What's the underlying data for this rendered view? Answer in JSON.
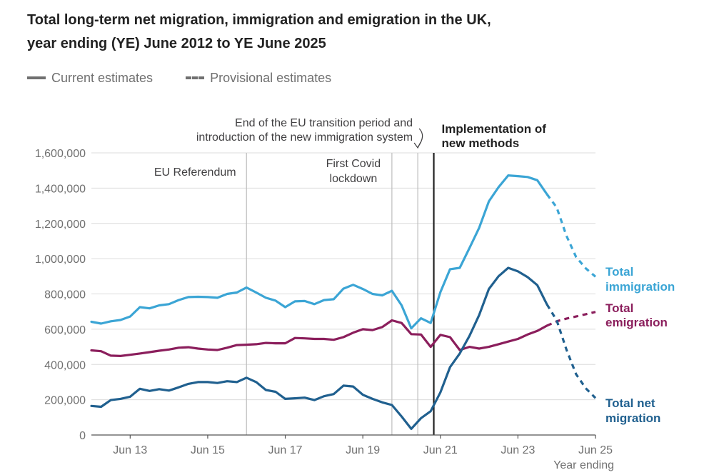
{
  "title": {
    "line1": "Total long-term net migration, immigration and emigration in the UK,",
    "line2": "year ending (YE) June 2012 to YE June 2025"
  },
  "legend": {
    "current": "Current estimates",
    "provisional": "Provisional estimates"
  },
  "colors": {
    "immigration": "#3BA5D5",
    "emigration": "#8B1E5C",
    "net": "#20608F",
    "grid": "#DCDCDC",
    "event_line": "#BDBDBD",
    "method_line": "#222222",
    "axis_text": "#707070"
  },
  "chart_data": {
    "type": "line",
    "title": "Total long-term net migration, immigration and emigration in the UK, year ending (YE) June 2012 to YE June 2025",
    "xlabel": "Year ending",
    "ylabel": "",
    "xlim": [
      2012.5,
      2025.5
    ],
    "ylim": [
      0,
      1600000
    ],
    "y_ticks": [
      0,
      200000,
      400000,
      600000,
      800000,
      1000000,
      1200000,
      1400000,
      1600000
    ],
    "y_tick_labels": [
      "0",
      "200,000",
      "400,000",
      "600,000",
      "800,000",
      "1,000,000",
      "1,200,000",
      "1,400,000",
      "1,600,000"
    ],
    "x_ticks": [
      2013.5,
      2015.5,
      2017.5,
      2019.5,
      2021.5,
      2023.5,
      2025.5
    ],
    "x_tick_labels": [
      "Jun 13",
      "Jun 15",
      "Jun 17",
      "Jun 19",
      "Jun 21",
      "Jun 23",
      "Jun 25"
    ],
    "grid": true,
    "provisional_from": 2024.25,
    "series": [
      {
        "name": "Total immigration",
        "label_lines": [
          "Total",
          "immigration"
        ],
        "color_key": "immigration",
        "x": [
          2012.5,
          2012.75,
          2013.0,
          2013.25,
          2013.5,
          2013.75,
          2014.0,
          2014.25,
          2014.5,
          2014.75,
          2015.0,
          2015.25,
          2015.5,
          2015.75,
          2016.0,
          2016.25,
          2016.5,
          2016.75,
          2017.0,
          2017.25,
          2017.5,
          2017.75,
          2018.0,
          2018.25,
          2018.5,
          2018.75,
          2019.0,
          2019.25,
          2019.5,
          2019.75,
          2020.0,
          2020.25,
          2020.5,
          2020.75,
          2021.0,
          2021.25,
          2021.5,
          2021.75,
          2022.0,
          2022.25,
          2022.5,
          2022.75,
          2023.0,
          2023.25,
          2023.5,
          2023.75,
          2024.0,
          2024.25,
          2024.5,
          2024.75,
          2025.0,
          2025.25,
          2025.5
        ],
        "values": [
          642000,
          632000,
          645000,
          652000,
          672000,
          725000,
          718000,
          735000,
          742000,
          765000,
          782000,
          784000,
          782000,
          778000,
          800000,
          808000,
          836000,
          808000,
          778000,
          762000,
          725000,
          758000,
          760000,
          742000,
          765000,
          770000,
          830000,
          852000,
          828000,
          800000,
          792000,
          818000,
          735000,
          605000,
          662000,
          635000,
          810000,
          940000,
          948000,
          1060000,
          1175000,
          1325000,
          1405000,
          1472000,
          1468000,
          1463000,
          1445000,
          1365000,
          1290000,
          1130000,
          1010000,
          945000,
          898000
        ]
      },
      {
        "name": "Total emigration",
        "label_lines": [
          "Total",
          "emigration"
        ],
        "color_key": "emigration",
        "x": [
          2012.5,
          2012.75,
          2013.0,
          2013.25,
          2013.5,
          2013.75,
          2014.0,
          2014.25,
          2014.5,
          2014.75,
          2015.0,
          2015.25,
          2015.5,
          2015.75,
          2016.0,
          2016.25,
          2016.5,
          2016.75,
          2017.0,
          2017.25,
          2017.5,
          2017.75,
          2018.0,
          2018.25,
          2018.5,
          2018.75,
          2019.0,
          2019.25,
          2019.5,
          2019.75,
          2020.0,
          2020.25,
          2020.5,
          2020.75,
          2021.0,
          2021.25,
          2021.5,
          2021.75,
          2022.0,
          2022.25,
          2022.5,
          2022.75,
          2023.0,
          2023.25,
          2023.5,
          2023.75,
          2024.0,
          2024.25,
          2024.5,
          2024.75,
          2025.0,
          2025.25,
          2025.5
        ],
        "values": [
          480000,
          475000,
          450000,
          448000,
          455000,
          462000,
          470000,
          478000,
          485000,
          495000,
          498000,
          490000,
          485000,
          482000,
          495000,
          510000,
          512000,
          515000,
          522000,
          520000,
          520000,
          550000,
          548000,
          545000,
          545000,
          540000,
          555000,
          580000,
          600000,
          595000,
          612000,
          650000,
          635000,
          572000,
          570000,
          500000,
          568000,
          555000,
          482000,
          500000,
          490000,
          500000,
          515000,
          530000,
          545000,
          570000,
          590000,
          620000,
          645000,
          660000,
          672000,
          685000,
          698000
        ]
      },
      {
        "name": "Total net migration",
        "label_lines": [
          "Total net",
          "migration"
        ],
        "color_key": "net",
        "x": [
          2012.5,
          2012.75,
          2013.0,
          2013.25,
          2013.5,
          2013.75,
          2014.0,
          2014.25,
          2014.5,
          2014.75,
          2015.0,
          2015.25,
          2015.5,
          2015.75,
          2016.0,
          2016.25,
          2016.5,
          2016.75,
          2017.0,
          2017.25,
          2017.5,
          2017.75,
          2018.0,
          2018.25,
          2018.5,
          2018.75,
          2019.0,
          2019.25,
          2019.5,
          2019.75,
          2020.0,
          2020.25,
          2020.5,
          2020.75,
          2021.0,
          2021.25,
          2021.5,
          2021.75,
          2022.0,
          2022.25,
          2022.5,
          2022.75,
          2023.0,
          2023.25,
          2023.5,
          2023.75,
          2024.0,
          2024.25,
          2024.5,
          2024.75,
          2025.0,
          2025.25,
          2025.5
        ],
        "values": [
          165000,
          160000,
          198000,
          205000,
          217000,
          262000,
          250000,
          260000,
          252000,
          270000,
          290000,
          300000,
          300000,
          295000,
          305000,
          300000,
          325000,
          300000,
          255000,
          245000,
          205000,
          208000,
          212000,
          198000,
          220000,
          232000,
          280000,
          275000,
          228000,
          205000,
          185000,
          170000,
          105000,
          35000,
          95000,
          135000,
          242000,
          385000,
          462000,
          562000,
          680000,
          828000,
          900000,
          948000,
          928000,
          895000,
          850000,
          740000,
          650000,
          485000,
          345000,
          265000,
          210000
        ]
      }
    ],
    "events": [
      {
        "x": 2016.5,
        "label_lines": [
          "EU Referendum"
        ]
      },
      {
        "x": 2020.25,
        "label_lines": [
          "First Covid",
          "lockdown"
        ]
      },
      {
        "x": 2020.9167,
        "label_lines": [
          "End of the EU transition period and",
          "introduction of the new immigration system"
        ]
      },
      {
        "x": 2021.33,
        "label_lines": [
          "Implementation of",
          "new methods"
        ],
        "emphasis": true
      }
    ]
  }
}
